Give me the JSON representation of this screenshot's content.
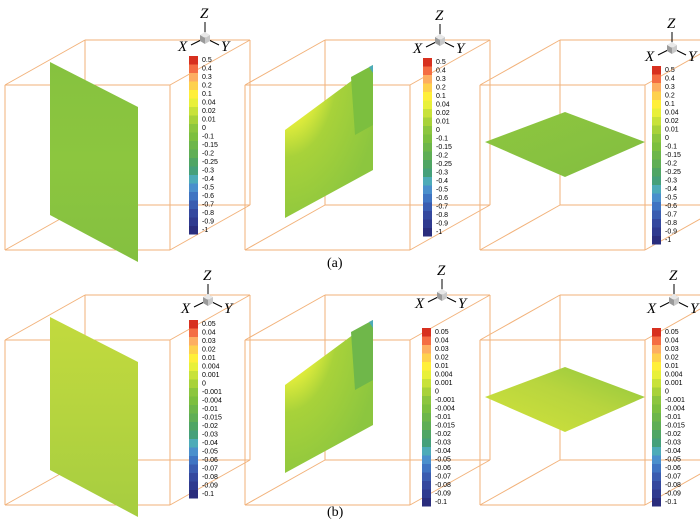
{
  "figure": {
    "rows": [
      {
        "caption": "(a)",
        "legend_ticks": [
          "0.5",
          "0.4",
          "0.3",
          "0.2",
          "0.1",
          "0.04",
          "0.02",
          "0.01",
          "0",
          "-0.1",
          "-0.15",
          "-0.2",
          "-0.25",
          "-0.3",
          "-0.4",
          "-0.5",
          "-0.6",
          "-0.7",
          "-0.8",
          "-0.9",
          "-1"
        ],
        "panels": [
          {
            "slice": "vertical-x",
            "field": "uniform-green"
          },
          {
            "slice": "vertical-y",
            "field": "corner-peak"
          },
          {
            "slice": "horizontal",
            "field": "uniform-green"
          }
        ]
      },
      {
        "caption": "(b)",
        "legend_ticks": [
          "0.05",
          "0.04",
          "0.03",
          "0.02",
          "0.01",
          "0.004",
          "0.001",
          "0",
          "-0.001",
          "-0.004",
          "-0.01",
          "-0.015",
          "-0.02",
          "-0.03",
          "-0.04",
          "-0.05",
          "-0.06",
          "-0.07",
          "-0.08",
          "-0.09",
          "-0.1"
        ],
        "panels": [
          {
            "slice": "vertical-x",
            "field": "yellow-green"
          },
          {
            "slice": "vertical-y",
            "field": "corner-peak"
          },
          {
            "slice": "horizontal",
            "field": "yellow-green"
          }
        ]
      }
    ],
    "axis_labels": {
      "x": "X",
      "y": "Y",
      "z": "Z"
    },
    "colormap": [
      "#d7301f",
      "#f46d43",
      "#fdae61",
      "#fed14d",
      "#ffef3a",
      "#e8f03a",
      "#c8e23a",
      "#a8d23a",
      "#8cc63f",
      "#7cbf3f",
      "#6db64a",
      "#5fae55",
      "#4fa564",
      "#45a07a",
      "#4dabb8",
      "#4a8fcc",
      "#3f74c2",
      "#3a5cb0",
      "#34489e",
      "#2f3a8f",
      "#2a2d7d"
    ],
    "colors": {
      "box_edge": "#f2b27a",
      "surface_green": "#8cc63f",
      "surface_yellow_green": "#b7d73f"
    }
  }
}
